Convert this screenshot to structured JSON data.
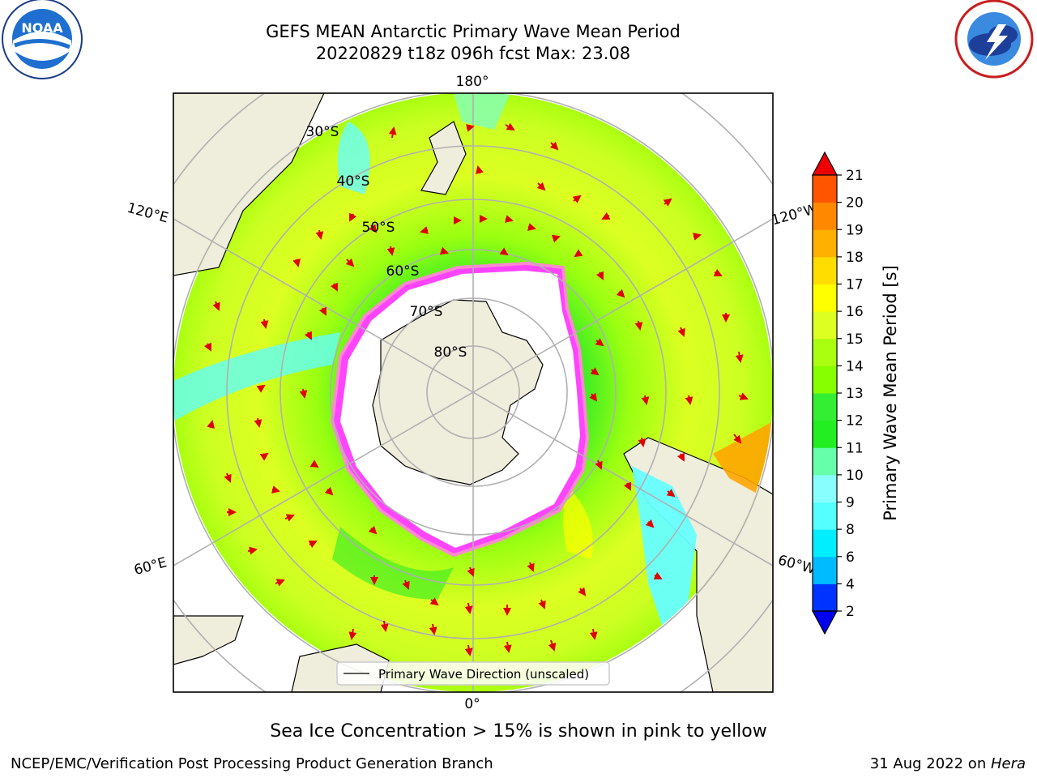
{
  "header": {
    "title_line1": "GEFS MEAN Antarctic Primary Wave Mean Period",
    "title_line2": "20220829 t18z 096h fcst   Max: 23.08"
  },
  "logos": {
    "noaa": {
      "text": "NOAA",
      "ring_text": "NATIONAL OCEANIC AND ATMOSPHERIC ADMINISTRATION · U.S. DEPARTMENT OF COMMERCE"
    },
    "nws": {
      "ring_text": "NATIONAL WEATHER SERVICE"
    }
  },
  "map": {
    "projection": "south-polar-stereographic",
    "longitude_labels": {
      "top": "180°",
      "bottom": "0°",
      "left_upper": "120°E",
      "left_lower": "60°E",
      "right_upper": "120°W",
      "right_lower": "60°W"
    },
    "latitude_labels": [
      "30°S",
      "40°S",
      "50°S",
      "60°S",
      "70°S",
      "80°S"
    ],
    "legend_label": "Primary Wave Direction (unscaled)",
    "colors": {
      "land": "#efeddc",
      "ice": "#ff44ff",
      "arrow": "#e00000",
      "grid": "#b0b0b0"
    }
  },
  "colorbar": {
    "label": "Primary Wave Mean Period [s]",
    "ticks": [
      "2",
      "4",
      "6",
      "8",
      "9",
      "10",
      "11",
      "12",
      "13",
      "14",
      "15",
      "16",
      "17",
      "18",
      "19",
      "20",
      "21"
    ],
    "colors": [
      "#0033ff",
      "#00bbff",
      "#00eeff",
      "#55ffff",
      "#88ffff",
      "#66ffaa",
      "#22ee22",
      "#33ee33",
      "#88ff00",
      "#aaff11",
      "#ddff22",
      "#ffff00",
      "#ffdd00",
      "#ffb000",
      "#ff8800",
      "#ff5500",
      "#ff2200"
    ],
    "extend_low_color": "#0000ee",
    "extend_high_color": "#ee0000"
  },
  "note": "Sea Ice Concentration > 15% is shown in pink to yellow",
  "footer": {
    "left": "NCEP/EMC/Verification Post Processing Product Generation Branch",
    "right_date": "31 Aug 2022 on ",
    "right_host": "Hera"
  }
}
